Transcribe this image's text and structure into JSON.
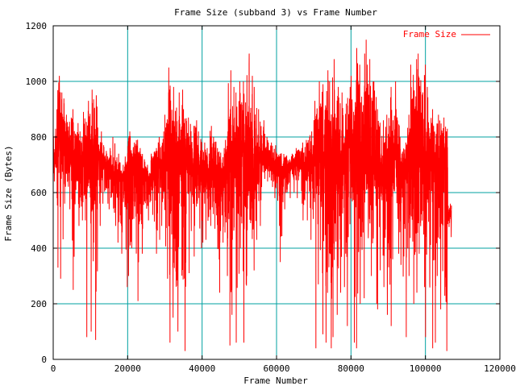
{
  "chart_data": {
    "type": "line",
    "title": "Frame Size (subband 3) vs Frame Number",
    "xlabel": "Frame Number",
    "ylabel": "Frame Size (Bytes)",
    "xlim": [
      0,
      120000
    ],
    "ylim": [
      0,
      1200
    ],
    "x_ticks": [
      0,
      20000,
      40000,
      60000,
      80000,
      100000,
      120000
    ],
    "y_ticks": [
      0,
      200,
      400,
      600,
      800,
      1000,
      1200
    ],
    "grid": true,
    "legend_position": "top-right",
    "colors": {
      "series": "#ff0000",
      "grid": "#00a0a0",
      "frame": "#000000"
    },
    "series": [
      {
        "name": "Frame Size",
        "x": [
          0,
          1000,
          2000,
          3000,
          4000,
          5000,
          6000,
          7000,
          8000,
          9000,
          10000,
          11000,
          12000,
          13000,
          14000,
          15000,
          16000,
          17000,
          18000,
          19000,
          20000,
          21000,
          22000,
          23000,
          24000,
          25000,
          26000,
          27000,
          28000,
          29000,
          30000,
          31000,
          32000,
          33000,
          34000,
          35000,
          36000,
          37000,
          38000,
          39000,
          40000,
          41000,
          42000,
          43000,
          44000,
          45000,
          46000,
          47000,
          48000,
          49000,
          50000,
          51000,
          52000,
          53000,
          54000,
          55000,
          56000,
          57000,
          58000,
          59000,
          60000,
          61000,
          62000,
          63000,
          64000,
          65000,
          66000,
          67000,
          68000,
          69000,
          70000,
          71000,
          72000,
          73000,
          74000,
          75000,
          76000,
          77000,
          78000,
          79000,
          80000,
          81000,
          82000,
          83000,
          84000,
          85000,
          86000,
          87000,
          88000,
          89000,
          90000,
          91000,
          92000,
          93000,
          94000,
          95000,
          96000,
          97000,
          98000,
          99000,
          100000,
          101000,
          102000,
          103000,
          104000,
          105000,
          106000,
          107000
        ],
        "max": [
          830,
          1020,
          960,
          880,
          870,
          900,
          850,
          820,
          890,
          930,
          970,
          950,
          820,
          780,
          750,
          760,
          800,
          740,
          700,
          730,
          820,
          780,
          790,
          760,
          720,
          700,
          740,
          760,
          800,
          820,
          880,
          1050,
          980,
          960,
          970,
          900,
          870,
          840,
          860,
          820,
          780,
          760,
          840,
          800,
          760,
          760,
          820,
          1040,
          980,
          960,
          1000,
          1000,
          1100,
          1020,
          980,
          900,
          860,
          800,
          780,
          770,
          740,
          720,
          730,
          720,
          740,
          760,
          760,
          780,
          800,
          820,
          930,
          1000,
          990,
          1040,
          1000,
          1080,
          980,
          960,
          920,
          980,
          1020,
          1120,
          1060,
          1100,
          1150,
          1080,
          1000,
          900,
          860,
          880,
          980,
          1000,
          900,
          800,
          780,
          880,
          1060,
          1080,
          1100,
          1060,
          980,
          900,
          840,
          880,
          870,
          830,
          560,
          580
        ],
        "min": [
          640,
          330,
          290,
          560,
          540,
          250,
          480,
          500,
          500,
          80,
          100,
          70,
          480,
          560,
          560,
          540,
          480,
          420,
          380,
          260,
          300,
          400,
          210,
          380,
          470,
          500,
          520,
          380,
          430,
          480,
          290,
          60,
          150,
          100,
          110,
          30,
          310,
          370,
          480,
          400,
          420,
          430,
          480,
          470,
          240,
          420,
          300,
          50,
          160,
          60,
          400,
          60,
          300,
          320,
          430,
          480,
          620,
          640,
          620,
          580,
          480,
          350,
          540,
          580,
          600,
          580,
          560,
          500,
          500,
          430,
          40,
          270,
          90,
          60,
          40,
          80,
          160,
          240,
          260,
          120,
          60,
          40,
          200,
          220,
          240,
          300,
          200,
          180,
          260,
          160,
          120,
          360,
          380,
          340,
          80,
          300,
          200,
          240,
          380,
          260,
          80,
          40,
          60,
          300,
          180,
          30,
          440,
          480
        ],
        "base": [
          720,
          790,
          760,
          720,
          740,
          680,
          690,
          680,
          710,
          700,
          720,
          690,
          700,
          710,
          700,
          680,
          660,
          640,
          620,
          650,
          700,
          680,
          690,
          680,
          660,
          650,
          640,
          660,
          680,
          700,
          720,
          730,
          700,
          690,
          710,
          640,
          680,
          660,
          700,
          680,
          660,
          640,
          670,
          660,
          640,
          640,
          680,
          720,
          690,
          680,
          710,
          700,
          720,
          700,
          690,
          700,
          720,
          720,
          710,
          700,
          690,
          680,
          700,
          690,
          700,
          710,
          700,
          690,
          700,
          710,
          720,
          740,
          730,
          750,
          720,
          700,
          720,
          700,
          690,
          720,
          740,
          760,
          730,
          740,
          760,
          730,
          700,
          680,
          670,
          680,
          700,
          720,
          700,
          660,
          650,
          680,
          740,
          760,
          770,
          750,
          720,
          700,
          680,
          680,
          690,
          700,
          520,
          520
        ]
      }
    ]
  }
}
